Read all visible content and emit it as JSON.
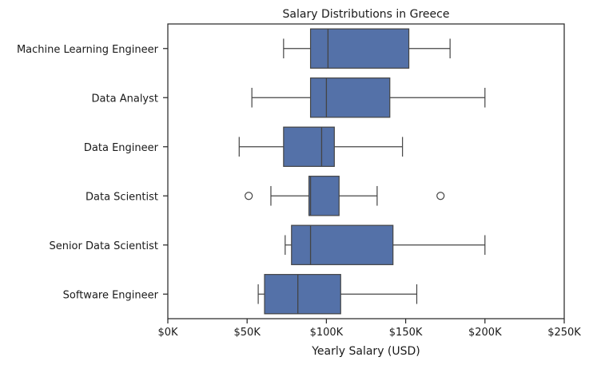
{
  "chart_data": {
    "type": "boxplot",
    "orientation": "horizontal",
    "title": "Salary Distributions in Greece",
    "xlabel": "Yearly Salary (USD)",
    "ylabel": "",
    "xlim": [
      0,
      250000
    ],
    "x_ticks": [
      0,
      50000,
      100000,
      150000,
      200000,
      250000
    ],
    "x_tick_labels": [
      "$0K",
      "$50K",
      "$100K",
      "$150K",
      "$200K",
      "$250K"
    ],
    "grid": false,
    "box_color": "#5471a8",
    "line_color": "#444444",
    "categories": [
      "Machine Learning Engineer",
      "Data Analyst",
      "Data Engineer",
      "Data Scientist",
      "Senior Data Scientist",
      "Software Engineer"
    ],
    "boxes": [
      {
        "whisker_low": 73000,
        "q1": 90000,
        "median": 101000,
        "q3": 152000,
        "whisker_high": 178000,
        "outliers": []
      },
      {
        "whisker_low": 53000,
        "q1": 90000,
        "median": 100000,
        "q3": 140000,
        "whisker_high": 200000,
        "outliers": []
      },
      {
        "whisker_low": 45000,
        "q1": 73000,
        "median": 97000,
        "q3": 105000,
        "whisker_high": 148000,
        "outliers": []
      },
      {
        "whisker_low": 65000,
        "q1": 89000,
        "median": 90000,
        "q3": 108000,
        "whisker_high": 132000,
        "outliers": [
          51000,
          172000
        ]
      },
      {
        "whisker_low": 74000,
        "q1": 78000,
        "median": 90000,
        "q3": 142000,
        "whisker_high": 200000,
        "outliers": []
      },
      {
        "whisker_low": 57000,
        "q1": 61000,
        "median": 82000,
        "q3": 109000,
        "whisker_high": 157000,
        "outliers": []
      }
    ]
  }
}
